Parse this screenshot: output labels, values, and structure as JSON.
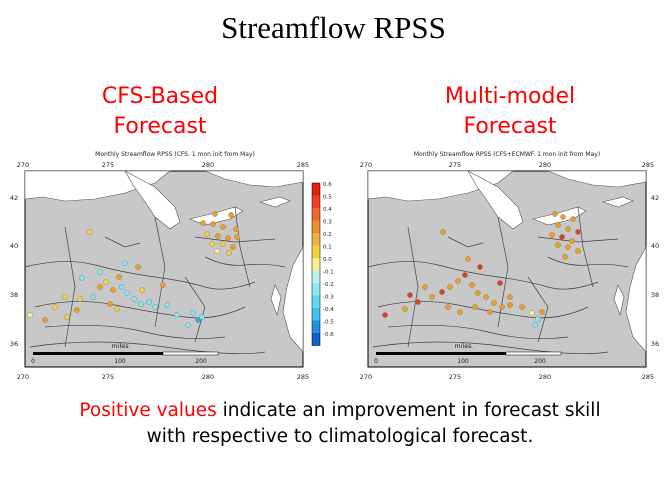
{
  "slide": {
    "title": "Streamflow RPSS",
    "left_heading": [
      "CFS-Based",
      "Forecast"
    ],
    "right_heading": [
      "Multi-model",
      "Forecast"
    ],
    "caption": {
      "highlight": "Positive values",
      "rest_line1": " indicate an improvement in forecast skill",
      "line2": "with respective to climatological forecast."
    }
  },
  "left_map": {
    "plot_title": "Monthly Streamflow RPSS (CFS. 1 mon init from May)",
    "top_lon_labels": [
      "270",
      "275",
      "280",
      "285"
    ],
    "bottom_lon_labels": [
      "270",
      "275",
      "280",
      "285"
    ],
    "lat_labels": [
      "42",
      "40",
      "38",
      "36"
    ],
    "scale_unit": "miles",
    "scale_labels": [
      "0",
      "100",
      "200"
    ],
    "colorbar_ticks": [
      "0.6",
      "0.5",
      "0.4",
      "0.3",
      "0.2",
      "0.1",
      "0.0",
      "-0.1",
      "-0.2",
      "-0.3",
      "-0.4",
      "-0.5",
      "-0.6"
    ]
  },
  "right_map": {
    "plot_title": "Monthly Streamflow RPSS (CFS+ECMWF. 1 mon init from May)",
    "top_lon_labels": [
      "270",
      "275",
      "280",
      "285"
    ],
    "bottom_lon_labels": [
      "270",
      "275",
      "280",
      "285"
    ],
    "lat_labels": [
      "42",
      "40",
      "38",
      "36"
    ],
    "scale_unit": "miles",
    "scale_labels": [
      "0",
      "100",
      "200"
    ]
  },
  "colors": {
    "heading": "#ff0000",
    "land": "#c8c8c8",
    "water": "#ffffff",
    "station_positive": "#f0a020",
    "station_negative": "#80e8f0"
  }
}
